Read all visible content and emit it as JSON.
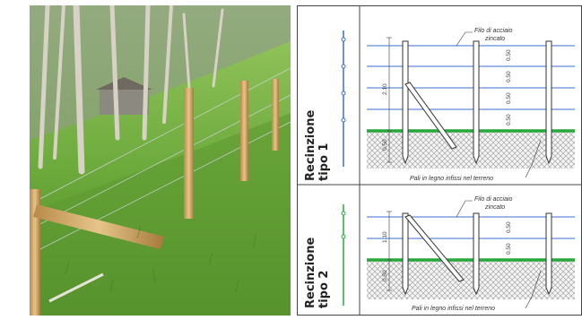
{
  "figure": {
    "photo_description_alt": "",
    "panels": [
      {
        "title_line1": "Recinzione",
        "title_line2": "tipo 1",
        "wire_label_line1": "Filo di acciaio",
        "wire_label_line2": "zincato",
        "post_label": "Pali in legno infissi nel terreno",
        "height_above": "2.10",
        "depth_below": "0.50",
        "spacings": [
          "0.50",
          "0.50",
          "0.50",
          "0.50"
        ],
        "wire_color": "#3b6fd4",
        "ground_color": "#27a83a"
      },
      {
        "title_line1": "Recinzione",
        "title_line2": "tipo 2",
        "wire_label_line1": "Filo di acciaio",
        "wire_label_line2": "zincato",
        "post_label": "Pali in legno infissi nel terreno",
        "height_above": "1.10",
        "depth_below": "0.50",
        "spacings": [
          "0.50",
          "0.50"
        ],
        "wire_color": "#3b6fd4",
        "ground_color": "#27a83a"
      }
    ]
  }
}
